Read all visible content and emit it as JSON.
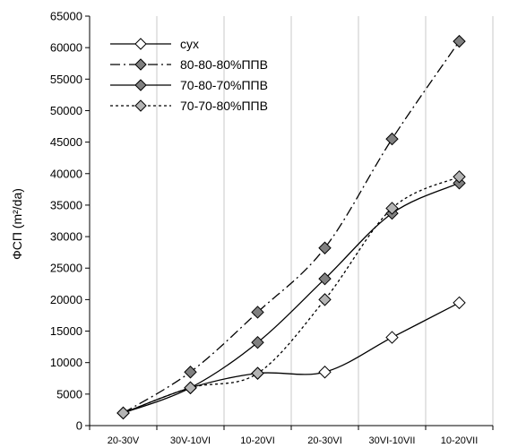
{
  "chart_data": {
    "type": "line",
    "categories": [
      "20-30V",
      "30V-10VI",
      "10-20VI",
      "20-30VI",
      "30VI-10VII",
      "10-20VII"
    ],
    "ylabel": "ФСП (m²/da)",
    "xlabel": "",
    "ylim": [
      0,
      65000
    ],
    "yticks": [
      "0",
      "5000",
      "10000",
      "15000",
      "20000",
      "25000",
      "30000",
      "35000",
      "40000",
      "45000",
      "50000",
      "55000",
      "60000",
      "65000"
    ],
    "grid": "vertical",
    "legend_position": "top-left",
    "series": [
      {
        "name": "сух",
        "values": [
          2000,
          6000,
          8300,
          8500,
          14000,
          19500
        ],
        "line": "solid",
        "marker_fill": "#ffffff"
      },
      {
        "name": "80-80-80%ППВ",
        "values": [
          2000,
          8500,
          18000,
          28200,
          45500,
          61000
        ],
        "line": "dashdot",
        "marker_fill": "#808080"
      },
      {
        "name": "70-80-70%ППВ",
        "values": [
          2000,
          6000,
          13200,
          23300,
          33700,
          38500
        ],
        "line": "solid",
        "marker_fill": "#808080"
      },
      {
        "name": "70-70-80%ППВ",
        "values": [
          2000,
          6000,
          8300,
          20000,
          34500,
          39500
        ],
        "line": "dotted",
        "marker_fill": "#b4b4b4"
      }
    ]
  }
}
